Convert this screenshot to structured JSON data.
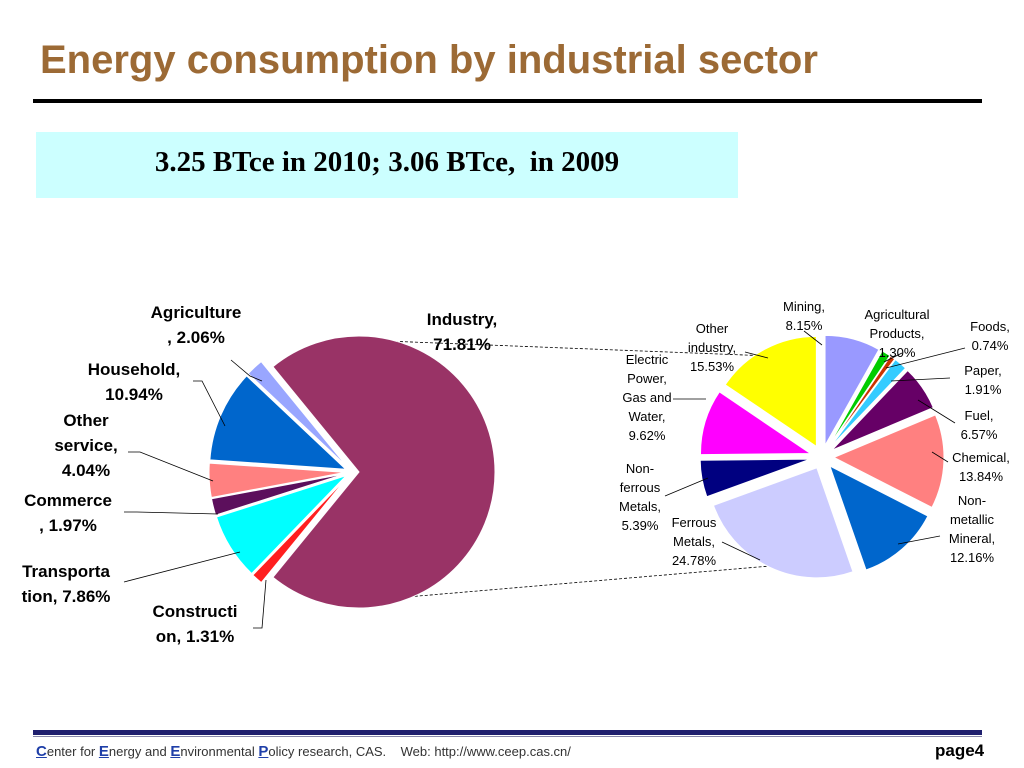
{
  "slide": {
    "title": "Energy consumption by industrial sector",
    "banner": "3.25 BTce in 2010; 3.06 BTce,  in 2009",
    "footer": {
      "c": "C",
      "c_rest": "enter for ",
      "e": "E",
      "e_rest": "nergy and ",
      "e2": "E",
      "e2_rest": "nvironmental ",
      "p": "P",
      "p_rest": "olicy research, CAS.    Web: http://www.ceep.cas.cn/"
    },
    "page": "page4"
  },
  "colors": {
    "title": "#9C6A35",
    "banner_bg": "#CCFFFF",
    "footer_bar": "#1F1F6E"
  },
  "chart_data": [
    {
      "type": "pie",
      "slices": [
        {
          "label": "Industry, 71.81%",
          "value": 71.81,
          "color": "#993366"
        },
        {
          "label": "Construction, 1.31%",
          "value": 1.31,
          "color": "#FF1F1F"
        },
        {
          "label": "Transportation, 7.86%",
          "value": 7.86,
          "color": "#00FFFF"
        },
        {
          "label": "Commerce, 1.97%",
          "value": 1.97,
          "color": "#5C0F5C"
        },
        {
          "label": "Other service, 4.04%",
          "value": 4.04,
          "color": "#FF8080"
        },
        {
          "label": "Household, 10.94%",
          "value": 10.94,
          "color": "#0066CC"
        },
        {
          "label": "Agriculture, 2.06%",
          "value": 2.06,
          "color": "#99A6FF"
        }
      ],
      "label_lines": [
        [
          "Agriculture",
          ", 2.06%"
        ],
        [
          "Industry,",
          "71.81%"
        ],
        [
          "Household,",
          "10.94%"
        ],
        [
          "Other",
          "service,",
          "4.04%"
        ],
        [
          "Commerce",
          ", 1.97%"
        ],
        [
          "Transporta",
          "tion, 7.86%"
        ],
        [
          "Constructi",
          "on, 1.31%"
        ]
      ]
    },
    {
      "type": "pie",
      "slices": [
        {
          "label": "Mining, 8.15%",
          "value": 8.15,
          "color": "#9999FF"
        },
        {
          "label": "Agricultural Products, 1.30%",
          "value": 1.3,
          "color": "#00CC00"
        },
        {
          "label": "Foods, 0.74%",
          "value": 0.74,
          "color": "#CC3300"
        },
        {
          "label": "Paper, 1.91%",
          "value": 1.91,
          "color": "#33CCFF"
        },
        {
          "label": "Fuel, 6.57%",
          "value": 6.57,
          "color": "#660066"
        },
        {
          "label": "Chemical, 13.84%",
          "value": 13.84,
          "color": "#FF8080"
        },
        {
          "label": "Non-metallic Mineral, 12.16%",
          "value": 12.16,
          "color": "#0066CC"
        },
        {
          "label": "Ferrous Metals, 24.78%",
          "value": 24.78,
          "color": "#CCCCFF"
        },
        {
          "label": "Non-ferrous Metals, 5.39%",
          "value": 5.39,
          "color": "#000080"
        },
        {
          "label": "Electric Power, Gas and Water, 9.62%",
          "value": 9.62,
          "color": "#FF00FF"
        },
        {
          "label": "Other industry, 15.53%",
          "value": 15.53,
          "color": "#FFFF00"
        }
      ],
      "label_lines": [
        [
          "Mining,",
          "8.15%"
        ],
        [
          "Agricultural",
          "Products,",
          "1.30%"
        ],
        [
          "Foods,",
          "0.74%"
        ],
        [
          "Paper,",
          "1.91%"
        ],
        [
          "Fuel,",
          "6.57%"
        ],
        [
          "Chemical,",
          "13.84%"
        ],
        [
          "Non-",
          "metallic",
          "Mineral,",
          "12.16%"
        ],
        [
          "Ferrous",
          "Metals,",
          "24.78%"
        ],
        [
          "Non-",
          "ferrous",
          "Metals,",
          "5.39%"
        ],
        [
          "Electric",
          "Power,",
          "Gas and",
          "Water,",
          "9.62%"
        ],
        [
          "Other",
          "industry,",
          "15.53%"
        ]
      ]
    }
  ]
}
